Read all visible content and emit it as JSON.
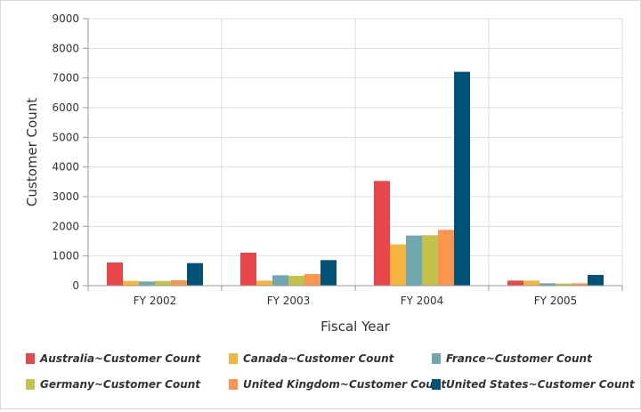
{
  "chart_data": {
    "type": "bar",
    "categories": [
      "FY 2002",
      "FY 2003",
      "FY 2004",
      "FY 2005"
    ],
    "series": [
      {
        "name": "Australia~Customer Count",
        "color": "#e94649",
        "values": [
          780,
          1110,
          3530,
          170
        ]
      },
      {
        "name": "Canada~Customer Count",
        "color": "#f6b53f",
        "values": [
          160,
          170,
          1390,
          170
        ]
      },
      {
        "name": "France~Customer Count",
        "color": "#6fa8b0",
        "values": [
          140,
          350,
          1690,
          80
        ]
      },
      {
        "name": "Germany~Customer Count",
        "color": "#c4c24a",
        "values": [
          160,
          330,
          1700,
          70
        ]
      },
      {
        "name": "United Kingdom~Customer Count",
        "color": "#fb954f",
        "values": [
          180,
          390,
          1880,
          80
        ]
      },
      {
        "name": "United States~Customer Count",
        "color": "#005277",
        "values": [
          760,
          860,
          7210,
          360
        ]
      }
    ],
    "title": "",
    "xlabel": "Fiscal Year",
    "ylabel": "Customer Count",
    "ylim": [
      0,
      9000
    ],
    "yticks": [
      "0",
      "1000",
      "2000",
      "3000",
      "4000",
      "5000",
      "6000",
      "7000",
      "8000",
      "9000"
    ],
    "grid": true,
    "legend_position": "bottom"
  }
}
